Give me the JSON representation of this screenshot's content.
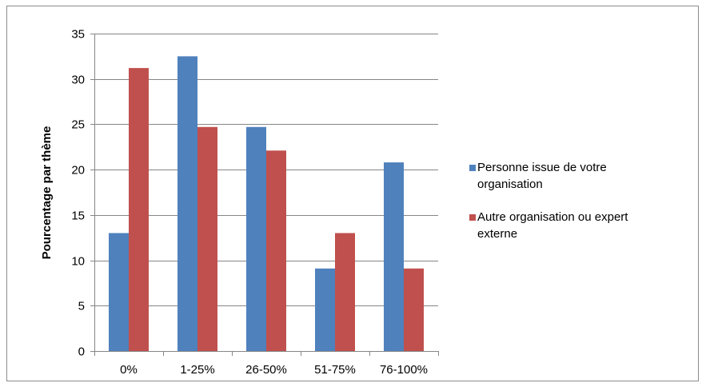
{
  "chart_data": {
    "type": "bar",
    "categories": [
      "0%",
      "1-25%",
      "26-50%",
      "51-75%",
      "76-100%"
    ],
    "series": [
      {
        "name": "Personne issue de votre organisation",
        "legend_lines": [
          "Personne issue de votre",
          "organisation"
        ],
        "color": "#4F81BD",
        "values": [
          13.0,
          32.5,
          24.7,
          9.1,
          20.8
        ]
      },
      {
        "name": "Autre organisation ou expert externe",
        "legend_lines": [
          "Autre organisation ou expert",
          "externe"
        ],
        "color": "#C0504D",
        "values": [
          31.2,
          24.7,
          22.1,
          13.0,
          9.1
        ]
      }
    ],
    "title": "",
    "xlabel": "",
    "ylabel": "Pourcentage par thème",
    "ylim": [
      0,
      35
    ],
    "yticks": [
      "0",
      "5",
      "10",
      "15",
      "20",
      "25",
      "30",
      "35"
    ],
    "grid": true,
    "legend_position": "right"
  }
}
